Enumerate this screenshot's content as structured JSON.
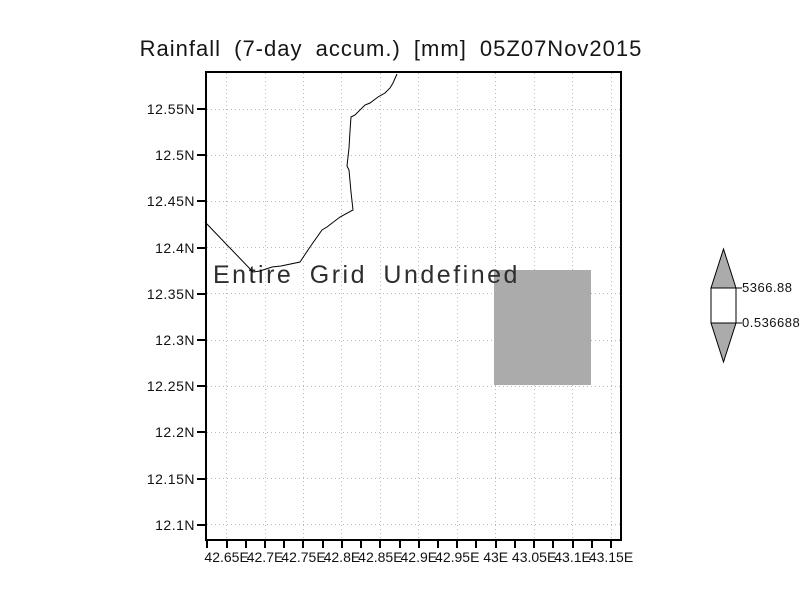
{
  "title": "Rainfall (7-day accum.) [mm] 05Z07Nov2015",
  "plot": {
    "undefined_message": "Entire Grid Undefined",
    "y_axis_labels": [
      "12.55N",
      "12.5N",
      "12.45N",
      "12.4N",
      "12.35N",
      "12.3N",
      "12.25N",
      "12.2N",
      "12.15N",
      "12.1N"
    ],
    "x_axis_labels": [
      "42.65E",
      "42.7E",
      "42.75E",
      "42.8E",
      "42.85E",
      "42.9E",
      "42.95E",
      "43E",
      "43.05E",
      "43.1E",
      "43.15E"
    ]
  },
  "colorbar": {
    "max_label": "5366.88",
    "min_label": "0.536688"
  },
  "colors": {
    "shade_gray": "#ababab",
    "grid_dots": "#b8b8b8",
    "frame": "#000000",
    "background": "#ffffff"
  },
  "chart_data": {
    "type": "heatmap",
    "title": "Rainfall (7-day accum.) [mm] 05Z07Nov2015",
    "variable": "Rainfall (7-day accum.) [mm]",
    "timestamp_label": "05Z07Nov2015",
    "x_tick_labels": [
      "42.65E",
      "42.7E",
      "42.75E",
      "42.8E",
      "42.85E",
      "42.9E",
      "42.95E",
      "43E",
      "43.05E",
      "43.1E",
      "43.15E"
    ],
    "y_tick_labels": [
      "12.55N",
      "12.5N",
      "12.45N",
      "12.4N",
      "12.35N",
      "12.3N",
      "12.25N",
      "12.2N",
      "12.15N",
      "12.1N"
    ],
    "x_range_deg_east": [
      42.62,
      43.17
    ],
    "y_range_deg_north": [
      12.08,
      12.59
    ],
    "values": [],
    "status_annotation": "Entire Grid Undefined",
    "masked_region_bounds": {
      "x_deg_east": [
        43.0,
        43.125
      ],
      "y_deg_north": [
        12.25,
        12.375
      ]
    },
    "colorbar": {
      "min": 0.536688,
      "max": 5366.88,
      "position": "right"
    },
    "grid": "dotted",
    "overlays": [
      "coastline"
    ]
  }
}
